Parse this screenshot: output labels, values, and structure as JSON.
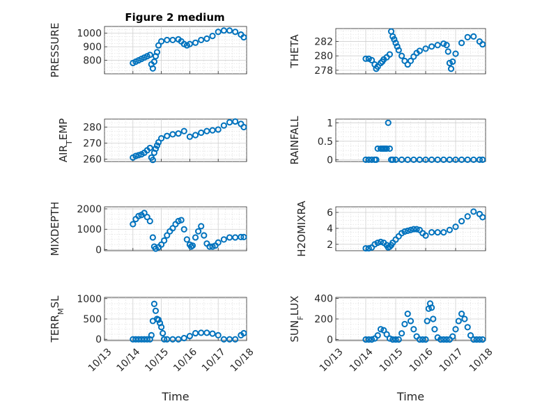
{
  "figure": {
    "title": "Figure 2 medium"
  },
  "chart_data": [
    {
      "type": "scatter",
      "id": "pressure",
      "ylabel": "PRESSURE",
      "ylabel_sub": "",
      "xlim": [
        13,
        18
      ],
      "ylim": [
        700,
        1050
      ],
      "yticks": [
        800,
        900,
        1000
      ],
      "xticks": [],
      "color": "#0072BD",
      "grid": true,
      "x": [
        14.0,
        14.1,
        14.2,
        14.3,
        14.4,
        14.5,
        14.6,
        14.65,
        14.7,
        14.75,
        14.8,
        14.85,
        14.9,
        15.0,
        15.2,
        15.4,
        15.6,
        15.7,
        15.8,
        15.9,
        16.0,
        16.2,
        16.4,
        16.6,
        16.8,
        17.0,
        17.2,
        17.4,
        17.6,
        17.8,
        17.9
      ],
      "y": [
        780,
        790,
        800,
        810,
        820,
        830,
        840,
        770,
        740,
        790,
        830,
        860,
        910,
        940,
        950,
        950,
        955,
        940,
        920,
        910,
        920,
        930,
        950,
        960,
        980,
        1010,
        1020,
        1020,
        1010,
        990,
        970
      ]
    },
    {
      "type": "scatter",
      "id": "theta",
      "ylabel": "THETA",
      "ylabel_sub": "",
      "xlim": [
        13,
        18
      ],
      "ylim": [
        277.5,
        283.8
      ],
      "yticks": [
        278,
        280,
        282
      ],
      "xticks": [],
      "color": "#0072BD",
      "grid": true,
      "x": [
        14.0,
        14.1,
        14.2,
        14.3,
        14.35,
        14.4,
        14.5,
        14.55,
        14.6,
        14.7,
        14.8,
        14.85,
        14.9,
        14.95,
        15.0,
        15.05,
        15.1,
        15.2,
        15.3,
        15.4,
        15.5,
        15.6,
        15.7,
        15.8,
        16.0,
        16.2,
        16.4,
        16.6,
        16.7,
        16.75,
        16.8,
        16.85,
        16.9,
        17.0,
        17.2,
        17.4,
        17.6,
        17.8,
        17.9
      ],
      "y": [
        279.6,
        279.6,
        279.4,
        278.8,
        278.2,
        278.5,
        279.0,
        279.2,
        279.5,
        279.8,
        280.2,
        283.4,
        282.7,
        282.3,
        281.8,
        281.3,
        280.8,
        280.0,
        279.3,
        278.8,
        279.3,
        279.9,
        280.4,
        280.7,
        281.0,
        281.3,
        281.5,
        281.7,
        281.5,
        280.6,
        279.0,
        278.2,
        279.2,
        280.3,
        281.8,
        282.6,
        282.7,
        282.0,
        281.6
      ]
    },
    {
      "type": "scatter",
      "id": "air_temp",
      "ylabel": "AIR",
      "ylabel_sub": "T",
      "ylabel_suffix": "EMP",
      "xlim": [
        13,
        18
      ],
      "ylim": [
        258.5,
        285
      ],
      "yticks": [
        260,
        270,
        280
      ],
      "xticks": [],
      "color": "#0072BD",
      "grid": true,
      "x": [
        14.0,
        14.1,
        14.2,
        14.3,
        14.4,
        14.5,
        14.6,
        14.65,
        14.7,
        14.75,
        14.8,
        14.85,
        14.9,
        15.0,
        15.2,
        15.4,
        15.6,
        15.8,
        16.0,
        16.2,
        16.4,
        16.6,
        16.8,
        17.0,
        17.2,
        17.4,
        17.6,
        17.8,
        17.9
      ],
      "y": [
        261,
        262,
        262.5,
        263,
        264,
        265.5,
        267,
        261,
        259.5,
        264,
        266.5,
        268.5,
        270.5,
        273,
        274.5,
        275.5,
        276,
        277.5,
        274,
        275,
        276.5,
        277.5,
        278,
        278.5,
        281,
        283,
        283.5,
        282,
        280
      ]
    },
    {
      "type": "scatter",
      "id": "rainfall",
      "ylabel": "RAINFALL",
      "ylabel_sub": "",
      "xlim": [
        13,
        18
      ],
      "ylim": [
        -0.05,
        1.1
      ],
      "yticks": [
        0,
        0.5,
        1
      ],
      "xticks": [],
      "color": "#0072BD",
      "grid": true,
      "x": [
        14.0,
        14.1,
        14.2,
        14.3,
        14.35,
        14.4,
        14.5,
        14.55,
        14.6,
        14.65,
        14.7,
        14.75,
        14.8,
        14.85,
        14.9,
        15.0,
        15.2,
        15.4,
        15.6,
        15.8,
        16.0,
        16.2,
        16.4,
        16.6,
        16.8,
        17.0,
        17.2,
        17.4,
        17.6,
        17.8,
        17.9
      ],
      "y": [
        0,
        0,
        0,
        0,
        0,
        0.3,
        0.3,
        0.3,
        0.3,
        0.3,
        0.3,
        1,
        0.3,
        0,
        0,
        0,
        0,
        0,
        0,
        0,
        0,
        0,
        0,
        0,
        0,
        0,
        0,
        0,
        0,
        0,
        0
      ]
    },
    {
      "type": "scatter",
      "id": "mixdepth",
      "ylabel": "MIXDEPTH",
      "ylabel_sub": "",
      "xlim": [
        13,
        18
      ],
      "ylim": [
        -50,
        2100
      ],
      "yticks": [
        0,
        1000,
        2000
      ],
      "xticks": [],
      "color": "#0072BD",
      "grid": true,
      "x": [
        14.0,
        14.1,
        14.2,
        14.3,
        14.4,
        14.5,
        14.6,
        14.7,
        14.75,
        14.8,
        14.9,
        15.0,
        15.1,
        15.2,
        15.3,
        15.4,
        15.5,
        15.6,
        15.7,
        15.8,
        15.9,
        16.0,
        16.05,
        16.1,
        16.2,
        16.3,
        16.4,
        16.5,
        16.6,
        16.7,
        16.8,
        16.9,
        17.0,
        17.2,
        17.4,
        17.6,
        17.8,
        17.9
      ],
      "y": [
        1250,
        1500,
        1650,
        1700,
        1800,
        1600,
        1400,
        600,
        150,
        50,
        120,
        250,
        450,
        700,
        900,
        1050,
        1250,
        1400,
        1450,
        1000,
        500,
        250,
        150,
        200,
        600,
        900,
        1150,
        700,
        300,
        150,
        150,
        200,
        350,
        500,
        600,
        600,
        620,
        620
      ]
    },
    {
      "type": "scatter",
      "id": "h2omixra",
      "ylabel": "H2OMIXRA",
      "ylabel_sub": "",
      "xlim": [
        13,
        18
      ],
      "ylim": [
        1.2,
        6.7
      ],
      "yticks": [
        2,
        4,
        6
      ],
      "xticks": [],
      "color": "#0072BD",
      "grid": true,
      "x": [
        14.0,
        14.1,
        14.2,
        14.3,
        14.4,
        14.5,
        14.6,
        14.7,
        14.75,
        14.8,
        14.85,
        14.9,
        15.0,
        15.1,
        15.2,
        15.3,
        15.4,
        15.5,
        15.6,
        15.7,
        15.8,
        15.9,
        16.0,
        16.2,
        16.4,
        16.6,
        16.8,
        17.0,
        17.2,
        17.4,
        17.6,
        17.8,
        17.9
      ],
      "y": [
        1.5,
        1.5,
        1.6,
        2.0,
        2.2,
        2.3,
        2.2,
        1.9,
        1.6,
        1.7,
        1.9,
        2.2,
        2.6,
        3.0,
        3.4,
        3.6,
        3.7,
        3.8,
        3.9,
        3.9,
        3.8,
        3.4,
        3.1,
        3.5,
        3.5,
        3.5,
        3.8,
        4.2,
        4.9,
        5.5,
        6.1,
        5.8,
        5.4
      ]
    },
    {
      "type": "scatter",
      "id": "terr_msl",
      "ylabel": "TERR",
      "ylabel_sub": "M",
      "ylabel_suffix": "SL",
      "xlim": [
        13,
        18
      ],
      "ylim": [
        -30,
        1030
      ],
      "yticks": [
        0,
        500,
        1000
      ],
      "xticks": [
        13,
        14,
        15,
        16,
        17,
        18
      ],
      "xticklabels": [
        "10/13",
        "10/14",
        "10/15",
        "10/16",
        "10/17",
        "10/18"
      ],
      "xlabel": "Time",
      "color": "#0072BD",
      "grid": true,
      "x": [
        14.0,
        14.1,
        14.2,
        14.3,
        14.4,
        14.5,
        14.6,
        14.65,
        14.7,
        14.75,
        14.8,
        14.85,
        14.9,
        14.95,
        15.0,
        15.05,
        15.1,
        15.2,
        15.4,
        15.6,
        15.8,
        16.0,
        16.2,
        16.4,
        16.6,
        16.8,
        17.0,
        17.2,
        17.4,
        17.6,
        17.8,
        17.9
      ],
      "y": [
        0,
        0,
        0,
        0,
        0,
        0,
        0,
        100,
        450,
        870,
        700,
        500,
        480,
        400,
        300,
        150,
        0,
        0,
        0,
        0,
        30,
        80,
        150,
        160,
        160,
        140,
        100,
        0,
        0,
        0,
        100,
        150
      ]
    },
    {
      "type": "scatter",
      "id": "sun_flux",
      "ylabel": "SUN",
      "ylabel_sub": "F",
      "ylabel_suffix": "LUX",
      "xlim": [
        13,
        18
      ],
      "ylim": [
        -10,
        410
      ],
      "yticks": [
        0,
        200,
        400
      ],
      "xticks": [
        13,
        14,
        15,
        16,
        17,
        18
      ],
      "xticklabels": [
        "10/13",
        "10/14",
        "10/15",
        "10/16",
        "10/17",
        "10/18"
      ],
      "xlabel": "Time",
      "color": "#0072BD",
      "grid": true,
      "x": [
        14.0,
        14.1,
        14.2,
        14.3,
        14.4,
        14.5,
        14.6,
        14.7,
        14.8,
        14.9,
        15.0,
        15.1,
        15.2,
        15.3,
        15.4,
        15.5,
        15.6,
        15.7,
        15.8,
        15.9,
        16.0,
        16.05,
        16.1,
        16.15,
        16.2,
        16.25,
        16.3,
        16.4,
        16.5,
        16.6,
        16.7,
        16.8,
        16.9,
        17.0,
        17.1,
        17.2,
        17.3,
        17.4,
        17.5,
        17.6,
        17.7,
        17.8,
        17.9
      ],
      "y": [
        0,
        0,
        0,
        10,
        40,
        100,
        90,
        50,
        10,
        0,
        0,
        0,
        60,
        150,
        250,
        180,
        100,
        30,
        0,
        0,
        0,
        180,
        300,
        350,
        310,
        200,
        100,
        20,
        0,
        0,
        0,
        0,
        30,
        100,
        180,
        250,
        200,
        120,
        40,
        0,
        0,
        0,
        0
      ]
    }
  ]
}
